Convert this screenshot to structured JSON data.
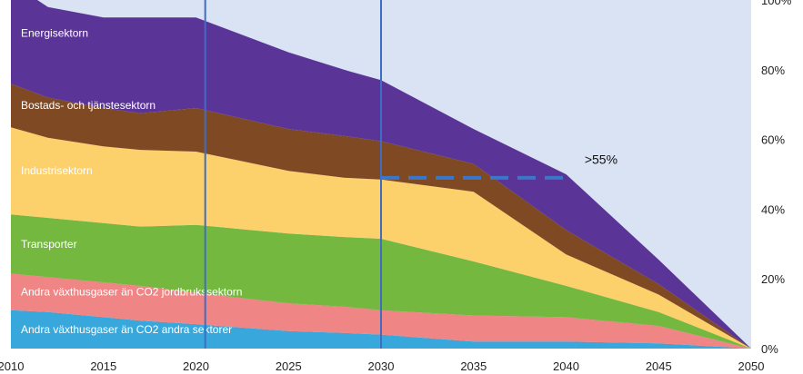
{
  "chart_data": {
    "type": "area",
    "stacked": true,
    "x": [
      2010,
      2012,
      2015,
      2017,
      2020,
      2025,
      2028,
      2030,
      2035,
      2040,
      2045,
      2050
    ],
    "xticks": [
      2010,
      2015,
      2020,
      2025,
      2030,
      2035,
      2040,
      2045,
      2050
    ],
    "xlim": [
      2010,
      2050
    ],
    "ylim": [
      0,
      100
    ],
    "yticks": [
      "0%",
      "20%",
      "40%",
      "60%",
      "80%",
      "100%"
    ],
    "grid": false,
    "legend": "none",
    "background": "#d9e3f3",
    "series": [
      {
        "name": "Andra växthusgaser än CO2 andra sektorer",
        "color": "#38a8dc",
        "values": [
          11,
          10.5,
          9,
          8,
          7,
          5,
          4.5,
          4,
          2,
          2,
          1.5,
          0
        ]
      },
      {
        "name": "Andra växthusgaser än CO2 jordbrukssektorn",
        "color": "#f08585",
        "values": [
          10.5,
          10,
          10,
          10,
          9,
          8,
          7.5,
          7,
          7.5,
          7,
          5,
          0
        ]
      },
      {
        "name": "Transporter",
        "color": "#74b840",
        "values": [
          17,
          17,
          17,
          17,
          19.5,
          20,
          20,
          20.5,
          15.5,
          9,
          4,
          0
        ]
      },
      {
        "name": "Industrisektorn",
        "color": "#fcd16b",
        "values": [
          25,
          23,
          22,
          22,
          21,
          18,
          17,
          17,
          20,
          9,
          5,
          0
        ]
      },
      {
        "name": "Bostads- och tjänstesektorn",
        "color": "#7f4a23",
        "values": [
          12.5,
          11.5,
          11,
          10.5,
          12.5,
          12,
          12,
          11,
          8,
          7,
          3,
          0
        ]
      },
      {
        "name": "Energisektorn",
        "color": "#5b3498",
        "values": [
          29,
          26,
          26,
          27.5,
          26,
          22,
          19,
          17.5,
          10,
          16,
          7,
          0
        ]
      }
    ],
    "vlines": [
      2020.5,
      2030
    ],
    "vline_color": "#3f6dc4",
    "target_line": {
      "x_start": 2030,
      "x_end": 2040,
      "y": 49,
      "color": "#3a77c8"
    },
    "annotation": {
      "text": ">55%",
      "x": 2041,
      "y": 53
    }
  }
}
